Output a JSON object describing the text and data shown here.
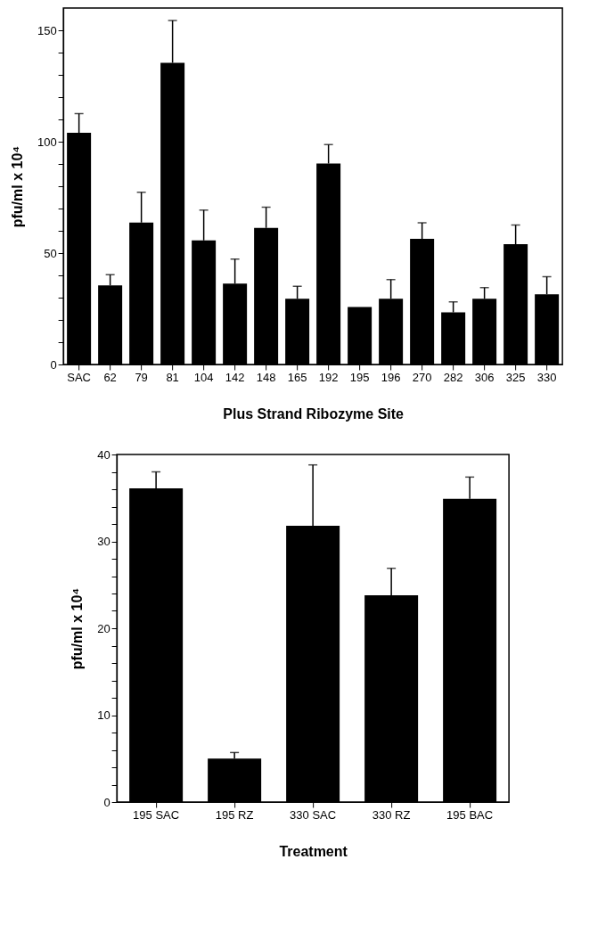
{
  "chart_data": [
    {
      "type": "bar",
      "xlabel": "Plus Strand Ribozyme Site",
      "ylabel": "pfu/ml x 10⁴",
      "color": "#000000",
      "categories": [
        "SAC",
        "62",
        "79",
        "81",
        "104",
        "142",
        "148",
        "165",
        "192",
        "195",
        "196",
        "270",
        "282",
        "306",
        "325",
        "330"
      ],
      "values": [
        104,
        35.5,
        63.7,
        135.4,
        55.7,
        36.3,
        61.3,
        29.5,
        90.2,
        25.8,
        29.5,
        56.4,
        23.4,
        29.5,
        54,
        31.5
      ],
      "errors": [
        [
          104,
          112.6
        ],
        [
          35.5,
          40.3
        ],
        [
          63.7,
          77.3
        ],
        [
          135.4,
          154.4
        ],
        [
          55.7,
          69.3
        ],
        [
          36.3,
          47.3
        ],
        [
          61.3,
          70.6
        ],
        [
          29.5,
          35.1
        ],
        [
          90.2,
          98.7
        ],
        null,
        [
          29.5,
          38.1
        ],
        [
          56.4,
          63.6
        ],
        [
          23.4,
          28.1
        ],
        [
          29.5,
          34.5
        ],
        [
          54,
          62.6
        ],
        [
          31.5,
          39.4
        ]
      ],
      "ylim": [
        0,
        160
      ],
      "yticks": [
        0,
        {
          "value": 10,
          "label": null
        },
        {
          "value": 20,
          "label": null
        },
        {
          "value": 30,
          "label": null
        },
        {
          "value": 40,
          "label": null
        },
        50,
        {
          "value": 60,
          "label": null
        },
        {
          "value": 70,
          "label": null
        },
        {
          "value": 80,
          "label": null
        },
        {
          "value": 90,
          "label": null
        },
        100,
        {
          "value": 110,
          "label": null
        },
        {
          "value": 120,
          "label": null
        },
        {
          "value": 130,
          "label": null
        },
        {
          "value": 140,
          "label": null
        },
        150
      ]
    },
    {
      "type": "bar",
      "xlabel": "Treatment",
      "ylabel": "pfu/ml x 10⁴",
      "color": "#000000",
      "categories": [
        "195 SAC",
        "195 RZ",
        "330 SAC",
        "330 RZ",
        "195 BAC"
      ],
      "values": [
        36.1,
        5.0,
        31.8,
        23.8,
        34.9
      ],
      "errors": [
        [
          36.1,
          38.0
        ],
        [
          5.0,
          5.7
        ],
        [
          31.8,
          38.8
        ],
        [
          23.8,
          26.9
        ],
        [
          34.9,
          37.4
        ]
      ],
      "ylim": [
        0,
        40
      ],
      "yticks": [
        0,
        {
          "value": 2,
          "label": null
        },
        {
          "value": 4,
          "label": null
        },
        {
          "value": 6,
          "label": null
        },
        {
          "value": 8,
          "label": null
        },
        10,
        {
          "value": 12,
          "label": null
        },
        {
          "value": 14,
          "label": null
        },
        {
          "value": 16,
          "label": null
        },
        {
          "value": 18,
          "label": null
        },
        20,
        {
          "value": 22,
          "label": null
        },
        {
          "value": 24,
          "label": null
        },
        {
          "value": 26,
          "label": null
        },
        {
          "value": 28,
          "label": null
        },
        30,
        {
          "value": 32,
          "label": null
        },
        {
          "value": 34,
          "label": null
        },
        {
          "value": 36,
          "label": null
        },
        {
          "value": 38,
          "label": null
        },
        40
      ]
    }
  ]
}
